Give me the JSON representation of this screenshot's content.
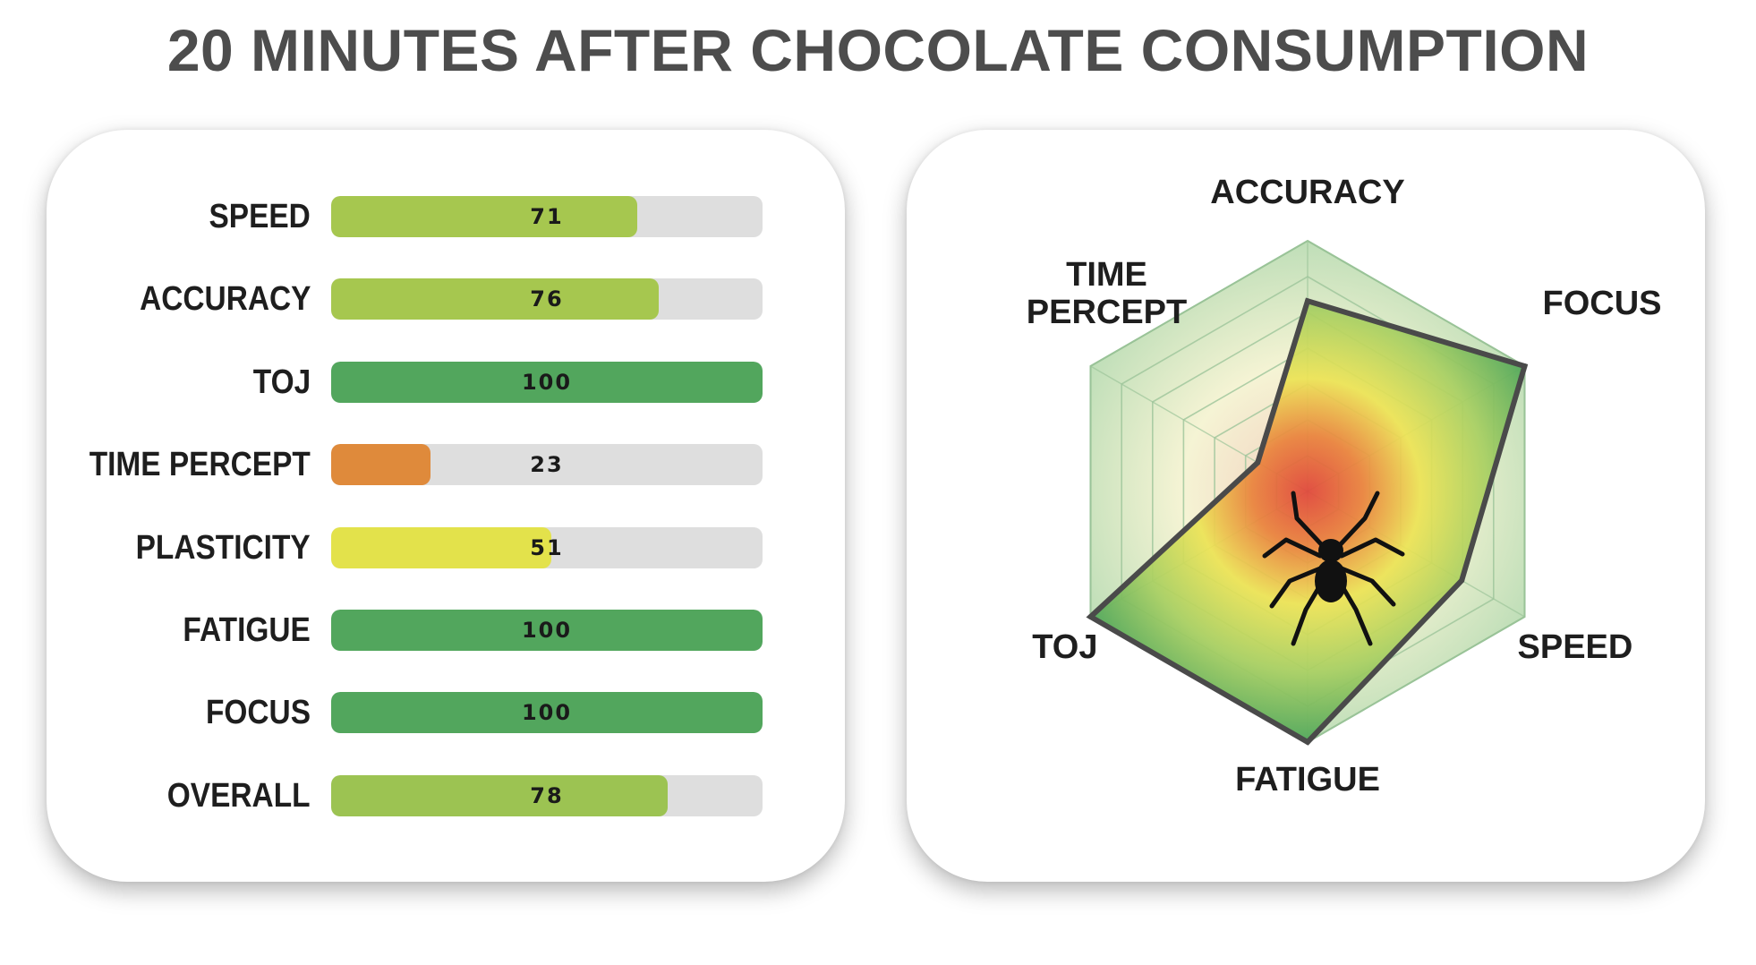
{
  "title": "20 MINUTES AFTER CHOCOLATE CONSUMPTION",
  "chart_data": [
    {
      "type": "bar",
      "orientation": "horizontal",
      "categories": [
        "SPEED",
        "ACCURACY",
        "TOJ",
        "TIME PERCEPT",
        "PLASTICITY",
        "FATIGUE",
        "FOCUS",
        "OVERALL"
      ],
      "values": [
        71,
        76,
        100,
        23,
        51,
        100,
        100,
        78
      ],
      "xlim": [
        0,
        100
      ],
      "bar_colors": [
        "#a6c74f",
        "#a6c74f",
        "#52a65d",
        "#df8a3b",
        "#e3e24b",
        "#52a65d",
        "#52a65d",
        "#9cc352"
      ],
      "track_color": "#dedede"
    },
    {
      "type": "radar",
      "categories": [
        "ACCURACY",
        "FOCUS",
        "SPEED",
        "FATIGUE",
        "TOJ",
        "TIME PERCEPT"
      ],
      "values": [
        76,
        100,
        71,
        100,
        100,
        23
      ],
      "rlim": [
        0,
        100
      ],
      "grid_rings": 7,
      "fill_color": "#5aad55",
      "outline_color": "#4a4a4a",
      "center_icon": "spider-icon"
    }
  ]
}
